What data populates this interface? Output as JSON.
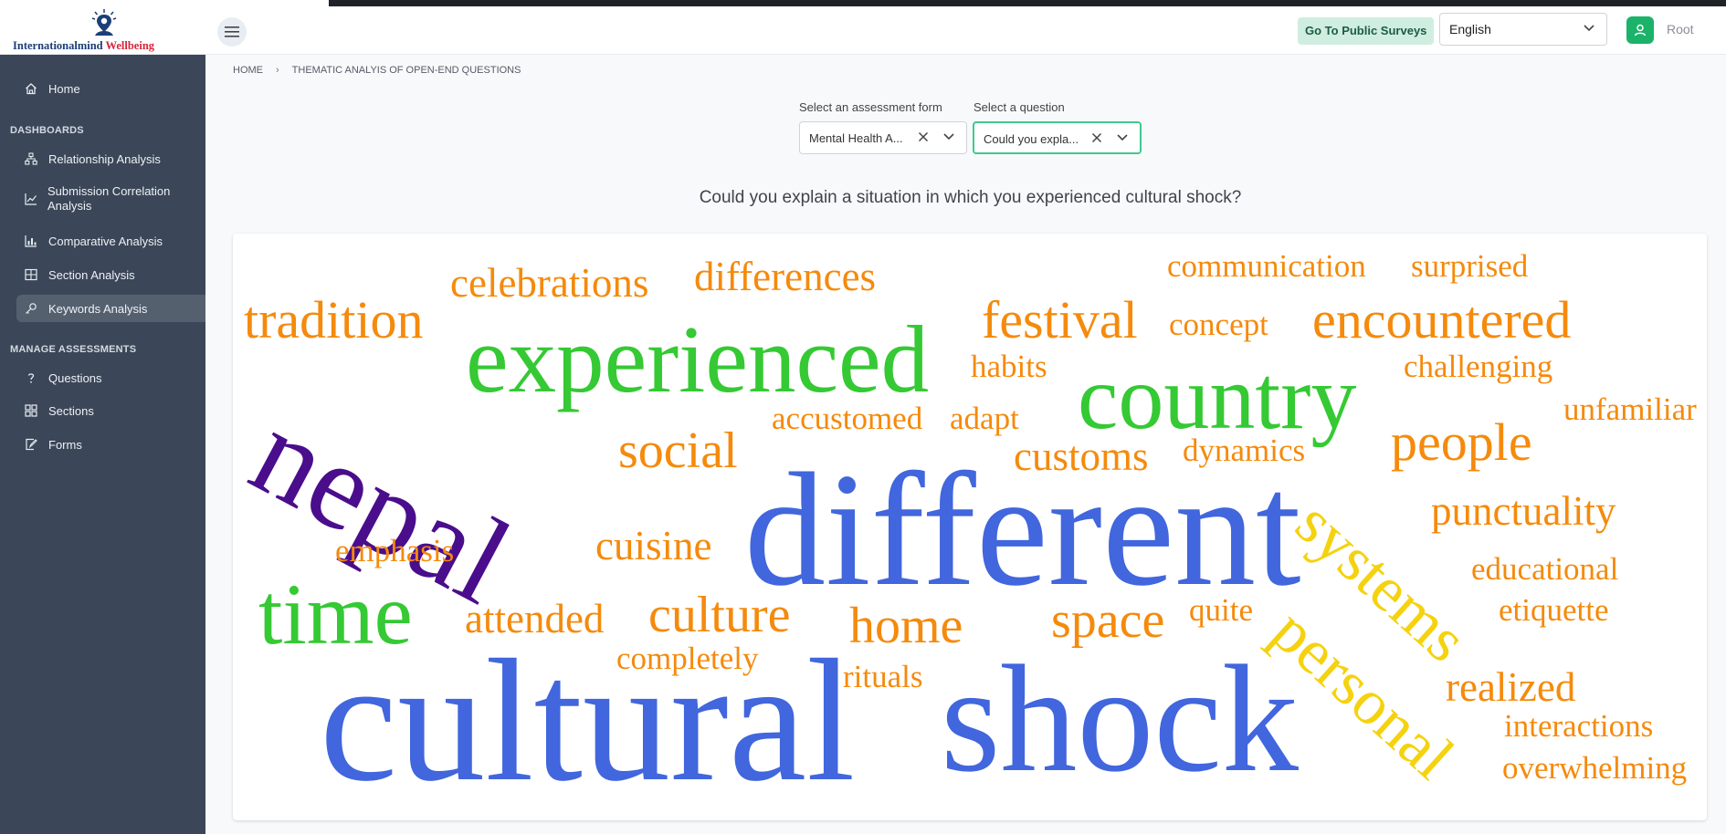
{
  "header": {
    "brand_part1": "Internationalmind",
    "brand_part2": "Wellbeing",
    "public_surveys_label": "Go To Public Surveys",
    "language_value": "English",
    "user_name": "Root"
  },
  "sidebar": {
    "home_label": "Home",
    "dashboards_title": "DASHBOARDS",
    "dashboards": [
      {
        "label": "Relationship Analysis",
        "icon": "sitemap-icon"
      },
      {
        "label": "Submission Correlation Analysis",
        "icon": "line-chart-icon"
      },
      {
        "label": "Comparative Analysis",
        "icon": "bar-chart-icon"
      },
      {
        "label": "Section Analysis",
        "icon": "table-icon"
      },
      {
        "label": "Keywords Analysis",
        "icon": "key-icon",
        "active": true
      }
    ],
    "manage_title": "MANAGE ASSESSMENTS",
    "manage": [
      {
        "label": "Questions",
        "icon": "question-icon"
      },
      {
        "label": "Sections",
        "icon": "grid-icon"
      },
      {
        "label": "Forms",
        "icon": "form-icon"
      }
    ]
  },
  "breadcrumb": {
    "home": "HOME",
    "current": "THEMATIC ANALYIS OF OPEN-END QUESTIONS"
  },
  "filters": {
    "form_label": "Select an assessment form",
    "form_value": "Mental Health A...",
    "question_label": "Select a question",
    "question_value": "Could you expla..."
  },
  "question_title": "Could you explain a situation in which you experienced cultural shock?",
  "colors": {
    "blue": "#4166dd",
    "green": "#35c934",
    "purple": "#4a0d8c",
    "orange": "#f58a0c",
    "yellow": "#f5d20f"
  },
  "word_cloud": [
    {
      "text": "different",
      "color": "blue",
      "weight": 10
    },
    {
      "text": "cultural",
      "color": "blue",
      "weight": 10
    },
    {
      "text": "shock",
      "color": "blue",
      "weight": 10
    },
    {
      "text": "nepal",
      "color": "purple",
      "weight": 8
    },
    {
      "text": "experienced",
      "color": "green",
      "weight": 7
    },
    {
      "text": "country",
      "color": "green",
      "weight": 7
    },
    {
      "text": "time",
      "color": "green",
      "weight": 6
    },
    {
      "text": "systems",
      "color": "yellow",
      "weight": 5
    },
    {
      "text": "personal",
      "color": "yellow",
      "weight": 5
    },
    {
      "text": "tradition",
      "color": "orange",
      "weight": 4
    },
    {
      "text": "festival",
      "color": "orange",
      "weight": 4
    },
    {
      "text": "encountered",
      "color": "orange",
      "weight": 4
    },
    {
      "text": "people",
      "color": "orange",
      "weight": 4
    },
    {
      "text": "social",
      "color": "orange",
      "weight": 4
    },
    {
      "text": "culture",
      "color": "orange",
      "weight": 4
    },
    {
      "text": "home",
      "color": "orange",
      "weight": 4
    },
    {
      "text": "space",
      "color": "orange",
      "weight": 4
    },
    {
      "text": "celebrations",
      "color": "orange",
      "weight": 3
    },
    {
      "text": "differences",
      "color": "orange",
      "weight": 3
    },
    {
      "text": "customs",
      "color": "orange",
      "weight": 3
    },
    {
      "text": "punctuality",
      "color": "orange",
      "weight": 3
    },
    {
      "text": "cuisine",
      "color": "orange",
      "weight": 3
    },
    {
      "text": "attended",
      "color": "orange",
      "weight": 3
    },
    {
      "text": "realized",
      "color": "orange",
      "weight": 3
    },
    {
      "text": "communication",
      "color": "orange",
      "weight": 2
    },
    {
      "text": "surprised",
      "color": "orange",
      "weight": 2
    },
    {
      "text": "concept",
      "color": "orange",
      "weight": 2
    },
    {
      "text": "habits",
      "color": "orange",
      "weight": 2
    },
    {
      "text": "challenging",
      "color": "orange",
      "weight": 2
    },
    {
      "text": "unfamiliar",
      "color": "orange",
      "weight": 2
    },
    {
      "text": "accustomed",
      "color": "orange",
      "weight": 2
    },
    {
      "text": "adapt",
      "color": "orange",
      "weight": 2
    },
    {
      "text": "dynamics",
      "color": "orange",
      "weight": 2
    },
    {
      "text": "emphasis",
      "color": "orange",
      "weight": 2
    },
    {
      "text": "educational",
      "color": "orange",
      "weight": 2
    },
    {
      "text": "etiquette",
      "color": "orange",
      "weight": 2
    },
    {
      "text": "quite",
      "color": "orange",
      "weight": 2
    },
    {
      "text": "completely",
      "color": "orange",
      "weight": 2
    },
    {
      "text": "rituals",
      "color": "orange",
      "weight": 2
    },
    {
      "text": "interactions",
      "color": "orange",
      "weight": 2
    },
    {
      "text": "overwhelming",
      "color": "orange",
      "weight": 2
    }
  ]
}
